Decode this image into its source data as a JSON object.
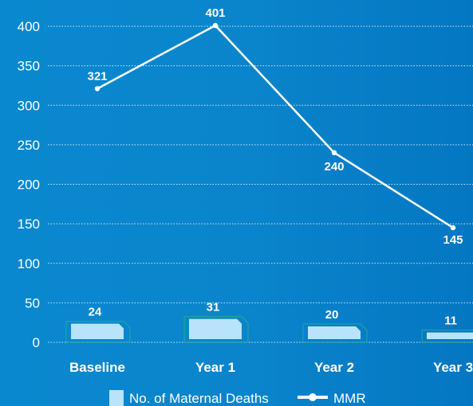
{
  "chart_data": {
    "type": "bar",
    "categories": [
      "Baseline",
      "Year 1",
      "Year 2",
      "Year 3"
    ],
    "series": [
      {
        "name": "No. of Maternal Deaths",
        "type": "bar",
        "values": [
          24,
          31,
          20,
          11
        ]
      },
      {
        "name": "MMR",
        "type": "line",
        "values": [
          321,
          401,
          240,
          145
        ]
      }
    ],
    "yticks": [
      0,
      50,
      100,
      150,
      200,
      250,
      300,
      350,
      400
    ],
    "ylim": [
      0,
      400
    ],
    "grid": true,
    "legend_position": "bottom",
    "colors": {
      "bar_fill": "#b9e3fa",
      "bar_edge": "#2fae8e",
      "line": "#ffffff",
      "grid": "#cfe9f8"
    }
  }
}
